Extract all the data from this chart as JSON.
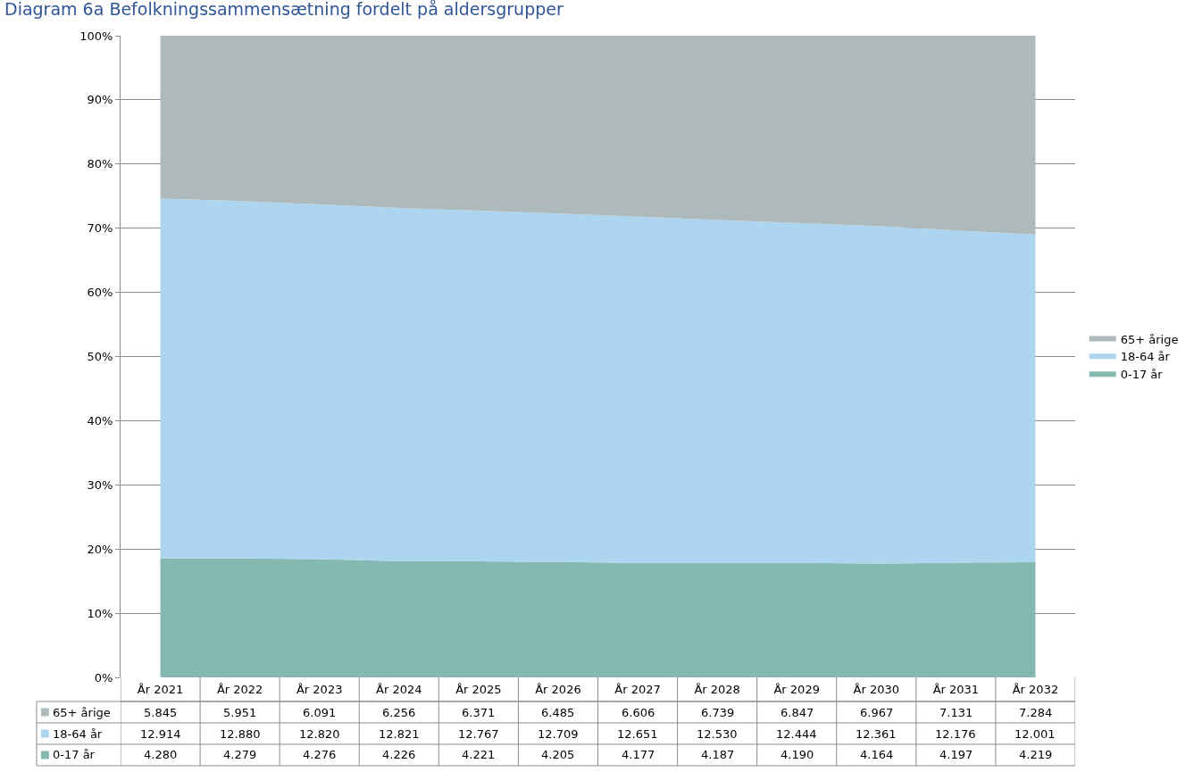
{
  "chart_data": {
    "type": "area",
    "title": "Diagram 6a Befolkningssammensætning fordelt på aldersgrupper",
    "categories": [
      "År 2021",
      "År 2022",
      "År 2023",
      "År 2024",
      "År 2025",
      "År 2026",
      "År 2027",
      "År 2028",
      "År 2029",
      "År 2030",
      "År 2031",
      "År 2032"
    ],
    "stacked": true,
    "series": [
      {
        "name": "0-17 år",
        "color": "#84b8b1",
        "values": [
          18.58,
          18.52,
          18.44,
          18.13,
          18.07,
          17.97,
          17.82,
          17.85,
          17.84,
          17.73,
          17.86,
          17.95
        ]
      },
      {
        "name": "18-64 år",
        "color": "#aed5ef",
        "values": [
          56.05,
          55.73,
          55.29,
          55.02,
          54.66,
          54.31,
          53.99,
          53.42,
          53.0,
          52.62,
          51.8,
          51.06
        ]
      },
      {
        "name": "65+ årige",
        "color": "#adb9ba",
        "values": [
          25.37,
          25.75,
          26.27,
          26.85,
          27.27,
          27.72,
          28.19,
          28.73,
          29.16,
          29.65,
          30.34,
          30.99
        ]
      }
    ],
    "annotations": [
      "5.845",
      "5.951",
      "6.091",
      "6.256",
      "6.371",
      "6.485",
      "6.606",
      "6.739",
      "6.847",
      "6.967",
      "7.131",
      "7.284",
      "12.914",
      "12.880",
      "12.820",
      "12.821",
      "12.767",
      "12.709",
      "12.651",
      "12.530",
      "12.444",
      "12.361",
      "12.176",
      "12.001",
      "4.280",
      "4.279",
      "4.276",
      "4.226",
      "4.221",
      "4.205",
      "4.177",
      "4.187",
      "4.190",
      "4.164",
      "4.197",
      "4.219"
    ],
    "ylim": [
      0,
      100
    ],
    "yticks": [
      {
        "value": 0,
        "label": "0%"
      },
      {
        "value": 10,
        "label": "10%"
      },
      {
        "value": 20,
        "label": "20%"
      },
      {
        "value": 30,
        "label": "30%"
      },
      {
        "value": 40,
        "label": "40%"
      },
      {
        "value": 50,
        "label": "50%"
      },
      {
        "value": 60,
        "label": "60%"
      },
      {
        "value": 70,
        "label": "70%"
      },
      {
        "value": 80,
        "label": "80%"
      },
      {
        "value": 90,
        "label": "90%"
      },
      {
        "value": 100,
        "label": "100%"
      }
    ],
    "grid": "y",
    "legend": "right"
  }
}
